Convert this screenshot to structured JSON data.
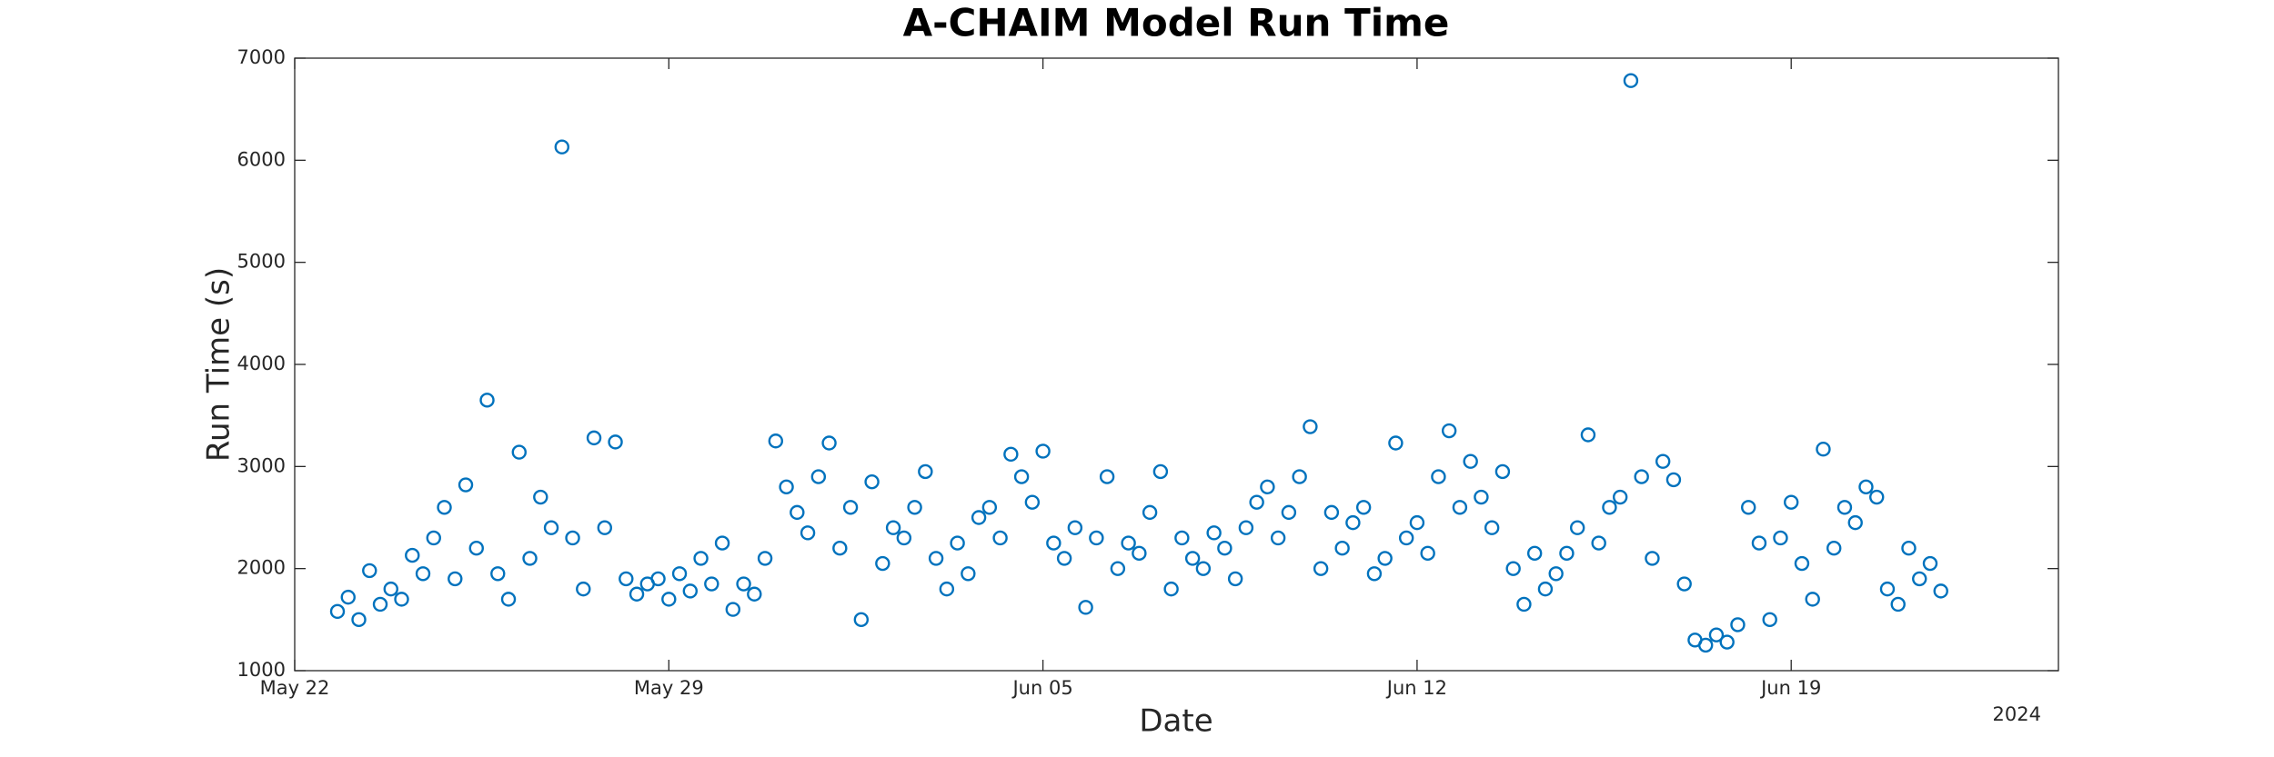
{
  "chart_data": {
    "type": "scatter",
    "title": "A-CHAIM Model Run Time",
    "x_label": "Date",
    "y_label": "Run Time (s)",
    "x_year_label": "2024",
    "color": "#0072BD",
    "grid": false,
    "marker": "open-circle",
    "xlim": [
      0,
      33
    ],
    "xticks": [
      {
        "value": 0,
        "label": "May 22"
      },
      {
        "value": 7,
        "label": "May 29"
      },
      {
        "value": 14,
        "label": "Jun 05"
      },
      {
        "value": 21,
        "label": "Jun 12"
      },
      {
        "value": 28,
        "label": "Jun 19"
      }
    ],
    "ylim": [
      1000,
      7000
    ],
    "yticks": [
      1000,
      2000,
      3000,
      4000,
      5000,
      6000,
      7000
    ],
    "x": [
      0.8,
      1.0,
      1.2,
      1.4,
      1.6,
      1.8,
      2.0,
      2.2,
      2.4,
      2.6,
      2.8,
      3.0,
      3.2,
      3.4,
      3.6,
      3.8,
      4.0,
      4.2,
      4.4,
      4.6,
      4.8,
      5.0,
      5.2,
      5.4,
      5.6,
      5.8,
      6.0,
      6.2,
      6.4,
      6.6,
      6.8,
      7.0,
      7.2,
      7.4,
      7.6,
      7.8,
      8.0,
      8.2,
      8.4,
      8.6,
      8.8,
      9.0,
      9.2,
      9.4,
      9.6,
      9.8,
      10.0,
      10.2,
      10.4,
      10.6,
      10.8,
      11.0,
      11.2,
      11.4,
      11.6,
      11.8,
      12.0,
      12.2,
      12.4,
      12.6,
      12.8,
      13.0,
      13.2,
      13.4,
      13.6,
      13.8,
      14.0,
      14.2,
      14.4,
      14.6,
      14.8,
      15.0,
      15.2,
      15.4,
      15.6,
      15.8,
      16.0,
      16.2,
      16.4,
      16.6,
      16.8,
      17.0,
      17.2,
      17.4,
      17.6,
      17.8,
      18.0,
      18.2,
      18.4,
      18.6,
      18.8,
      19.0,
      19.2,
      19.4,
      19.6,
      19.8,
      20.0,
      20.2,
      20.4,
      20.6,
      20.8,
      21.0,
      21.2,
      21.4,
      21.6,
      21.8,
      22.0,
      22.2,
      22.4,
      22.6,
      22.8,
      23.0,
      23.2,
      23.4,
      23.6,
      23.8,
      24.0,
      24.2,
      24.4,
      24.6,
      24.8,
      25.0,
      25.2,
      25.4,
      25.6,
      25.8,
      26.0,
      26.2,
      26.4,
      26.6,
      26.8,
      27.0,
      27.2,
      27.4,
      27.6,
      27.8,
      28.0,
      28.2,
      28.4,
      28.6,
      28.8,
      29.0,
      29.2,
      29.4,
      29.6,
      29.8,
      30.0,
      30.2,
      30.4,
      30.6,
      30.8
    ],
    "values": [
      1580,
      1720,
      1500,
      1980,
      1650,
      1800,
      1700,
      2130,
      1950,
      2300,
      2600,
      1900,
      2820,
      2200,
      3650,
      1950,
      1700,
      3140,
      2100,
      2700,
      2400,
      6130,
      2300,
      1800,
      3280,
      2400,
      3240,
      1900,
      1750,
      1850,
      1900,
      1700,
      1950,
      1780,
      2100,
      1850,
      2250,
      1600,
      1850,
      1750,
      2100,
      3250,
      2800,
      2550,
      2350,
      2900,
      3230,
      2200,
      2600,
      1500,
      2850,
      2050,
      2400,
      2300,
      2600,
      2950,
      2100,
      1800,
      2250,
      1950,
      2500,
      2600,
      2300,
      3120,
      2900,
      2650,
      3150,
      2250,
      2100,
      2400,
      1620,
      2300,
      2900,
      2000,
      2250,
      2150,
      2550,
      2950,
      1800,
      2300,
      2100,
      2000,
      2350,
      2200,
      1900,
      2400,
      2650,
      2800,
      2300,
      2550,
      2900,
      3390,
      2000,
      2550,
      2200,
      2450,
      2600,
      1950,
      2100,
      3230,
      2300,
      2450,
      2150,
      2900,
      3350,
      2600,
      3050,
      2700,
      2400,
      2950,
      2000,
      1650,
      2150,
      1800,
      1950,
      2150,
      2400,
      3310,
      2250,
      2600,
      2700,
      6780,
      2900,
      2100,
      3050,
      2870,
      1850,
      1300,
      1250,
      1350,
      1280,
      1450,
      2600,
      2250,
      1500,
      2300,
      2650,
      2050,
      1700,
      3170,
      2200,
      2600,
      2450,
      2800,
      2700,
      1800,
      1650,
      2200,
      1900,
      2050,
      1780
    ]
  }
}
